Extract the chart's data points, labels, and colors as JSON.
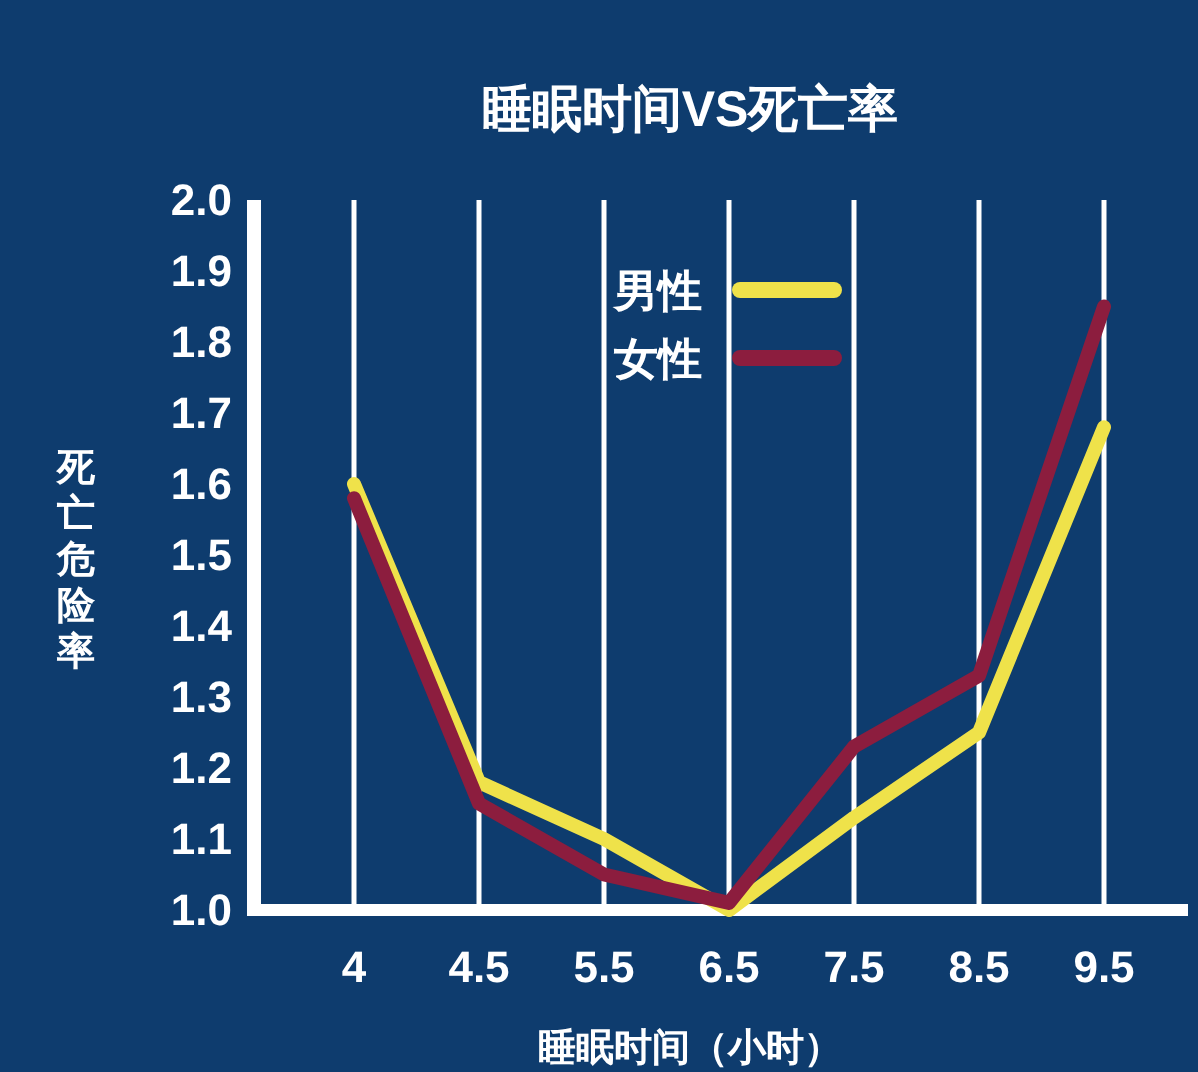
{
  "chart_data": {
    "type": "line",
    "title": "睡眠时间VS死亡率",
    "xlabel": "睡眠时间（小时）",
    "ylabel": "死亡危险率",
    "categories": [
      "4",
      "4.5",
      "5.5",
      "6.5",
      "7.5",
      "8.5",
      "9.5"
    ],
    "series": [
      {
        "name": "男性",
        "color": "#efe24a",
        "values": [
          1.6,
          1.18,
          1.1,
          1.0,
          1.13,
          1.25,
          1.68
        ]
      },
      {
        "name": "女性",
        "color": "#8c1d3e",
        "values": [
          1.58,
          1.15,
          1.05,
          1.01,
          1.23,
          1.33,
          1.85
        ]
      }
    ],
    "ylim": [
      1.0,
      2.0
    ],
    "yticks": [
      {
        "value": 1.0,
        "label": "1.0"
      },
      1.1,
      1.2,
      1.3,
      1.4,
      1.5,
      1.6,
      1.7,
      1.8,
      1.9,
      {
        "value": 2.0,
        "label": "2.0"
      }
    ],
    "grid": "x",
    "legend": "top"
  }
}
